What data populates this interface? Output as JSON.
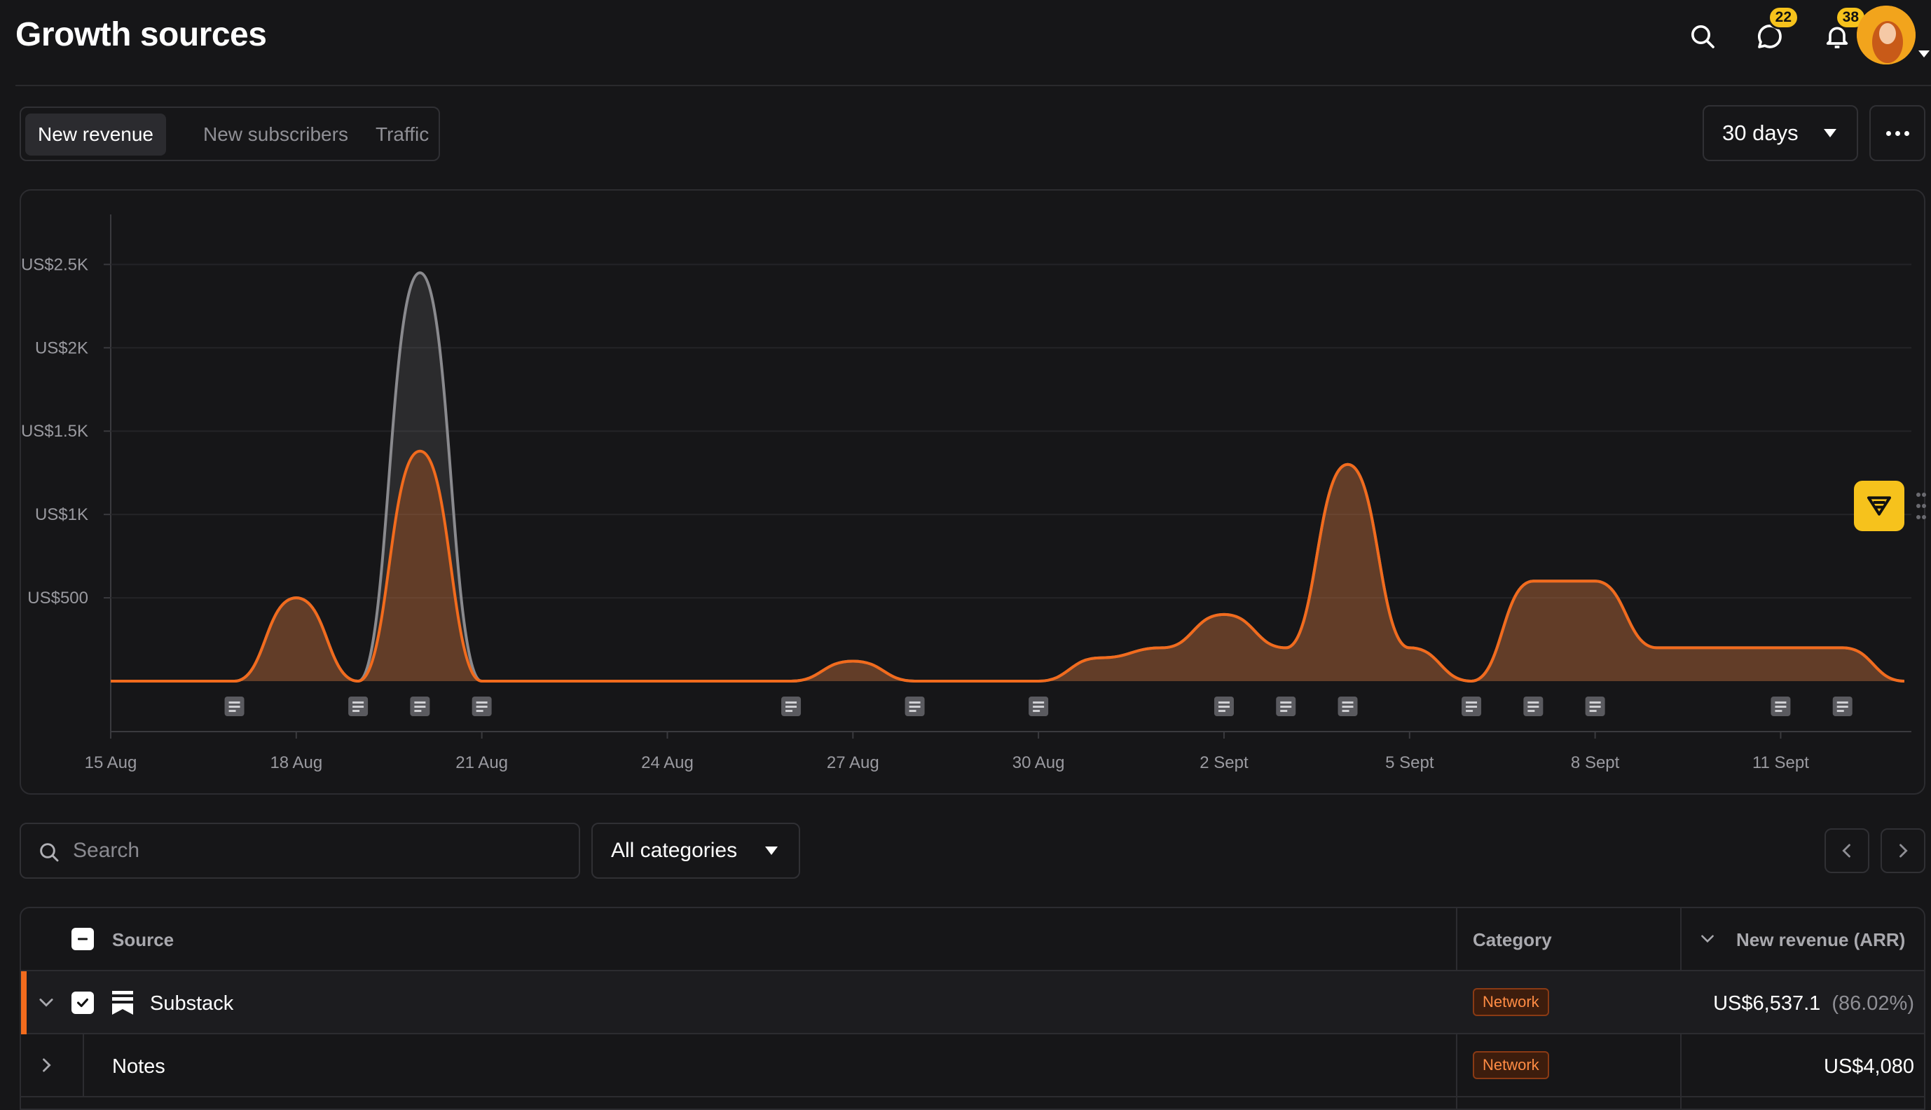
{
  "header": {
    "title": "Growth sources",
    "messages_badge": "22",
    "notifications_badge": "38"
  },
  "tabs": [
    {
      "label": "New revenue",
      "active": true
    },
    {
      "label": "New subscribers",
      "active": false
    },
    {
      "label": "Traffic",
      "active": false
    }
  ],
  "range": {
    "label": "30 days"
  },
  "chart_data": {
    "type": "area",
    "x": [
      "15 Aug",
      "16 Aug",
      "17 Aug",
      "18 Aug",
      "19 Aug",
      "20 Aug",
      "21 Aug",
      "22 Aug",
      "23 Aug",
      "24 Aug",
      "25 Aug",
      "26 Aug",
      "27 Aug",
      "28 Aug",
      "29 Aug",
      "30 Aug",
      "31 Aug",
      "1 Sept",
      "2 Sept",
      "3 Sept",
      "4 Sept",
      "5 Sept",
      "6 Sept",
      "7 Sept",
      "8 Sept",
      "9 Sept",
      "10 Sept",
      "11 Sept",
      "12 Sept",
      "13 Sept"
    ],
    "tick_labels": [
      "15 Aug",
      "18 Aug",
      "21 Aug",
      "24 Aug",
      "27 Aug",
      "30 Aug",
      "2 Sept",
      "5 Sept",
      "8 Sept",
      "11 Sept"
    ],
    "tick_indices": [
      0,
      3,
      6,
      9,
      12,
      15,
      18,
      21,
      24,
      27
    ],
    "series": [
      {
        "name": "",
        "color": "#8a8a8e",
        "values": [
          0,
          0,
          0,
          500,
          0,
          2450,
          0,
          0,
          0,
          0,
          0,
          0,
          120,
          0,
          0,
          0,
          140,
          200,
          400,
          200,
          1300,
          200,
          0,
          600,
          600,
          200,
          200,
          200,
          200,
          0
        ]
      },
      {
        "name": "",
        "color": "#f26b1d",
        "values": [
          0,
          0,
          0,
          500,
          0,
          1380,
          0,
          0,
          0,
          0,
          0,
          0,
          120,
          0,
          0,
          0,
          140,
          200,
          400,
          200,
          1300,
          200,
          0,
          600,
          600,
          200,
          200,
          200,
          200,
          0
        ]
      }
    ],
    "y_ticks": [
      "US$500",
      "US$1K",
      "US$1.5K",
      "US$2K",
      "US$2.5K"
    ],
    "y_tick_values": [
      500,
      1000,
      1500,
      2000,
      2500
    ],
    "ylim": [
      0,
      2800
    ],
    "note_marker_indices": [
      2,
      4,
      5,
      6,
      11,
      13,
      15,
      18,
      19,
      20,
      22,
      23,
      24,
      27,
      28
    ],
    "grid": true
  },
  "filters": {
    "search_placeholder": "Search",
    "category_label": "All categories"
  },
  "table": {
    "columns": {
      "source": "Source",
      "category": "Category",
      "revenue": "New revenue (ARR)"
    },
    "rows": [
      {
        "source": "Substack",
        "category": "Network",
        "revenue": "US$6,537.1",
        "share": "(86.02%)"
      },
      {
        "source": "Notes",
        "category": "Network",
        "revenue": "US$4,080",
        "share": ""
      }
    ]
  },
  "colors": {
    "accent": "#f26b1d",
    "badge": "#f6c21c",
    "background": "#161618"
  }
}
